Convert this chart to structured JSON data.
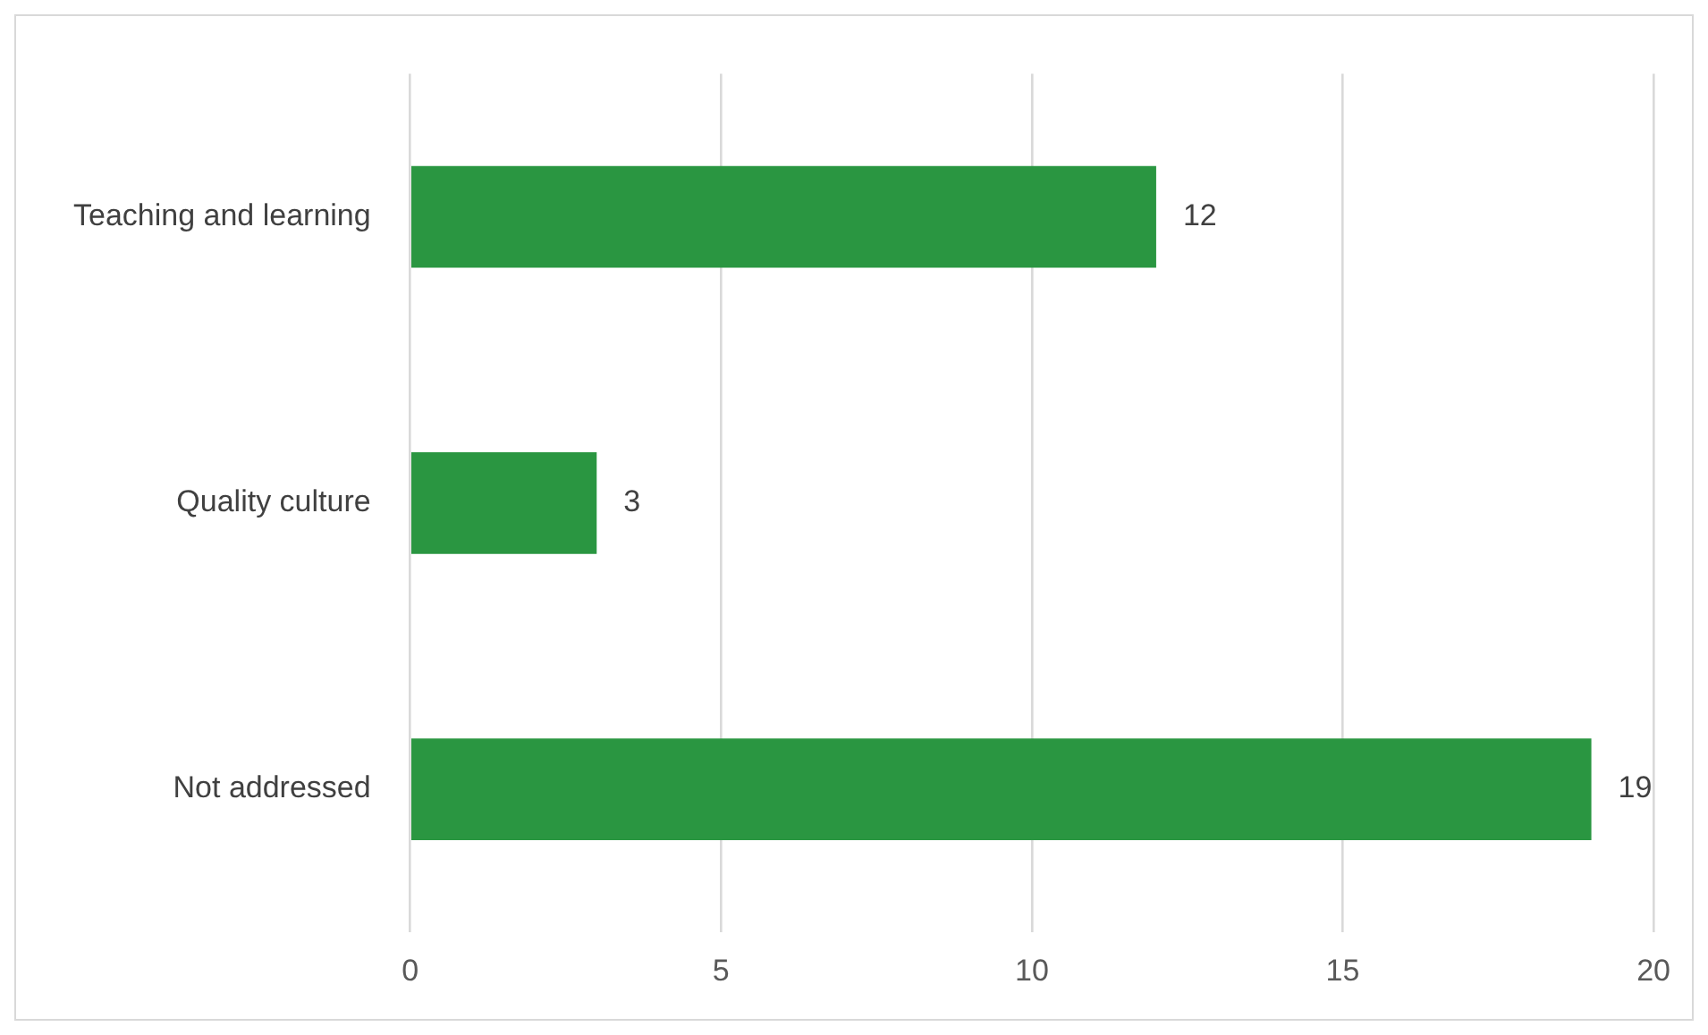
{
  "chart_data": {
    "type": "bar",
    "orientation": "horizontal",
    "categories": [
      "Teaching and learning",
      "Quality culture",
      "Not addressed"
    ],
    "values": [
      12,
      3,
      19
    ],
    "color": "#2a9641",
    "xlim": [
      0,
      20
    ],
    "xticks": [
      0,
      5,
      10,
      15,
      20
    ],
    "grid": "x",
    "data_labels": true,
    "legend": false
  }
}
